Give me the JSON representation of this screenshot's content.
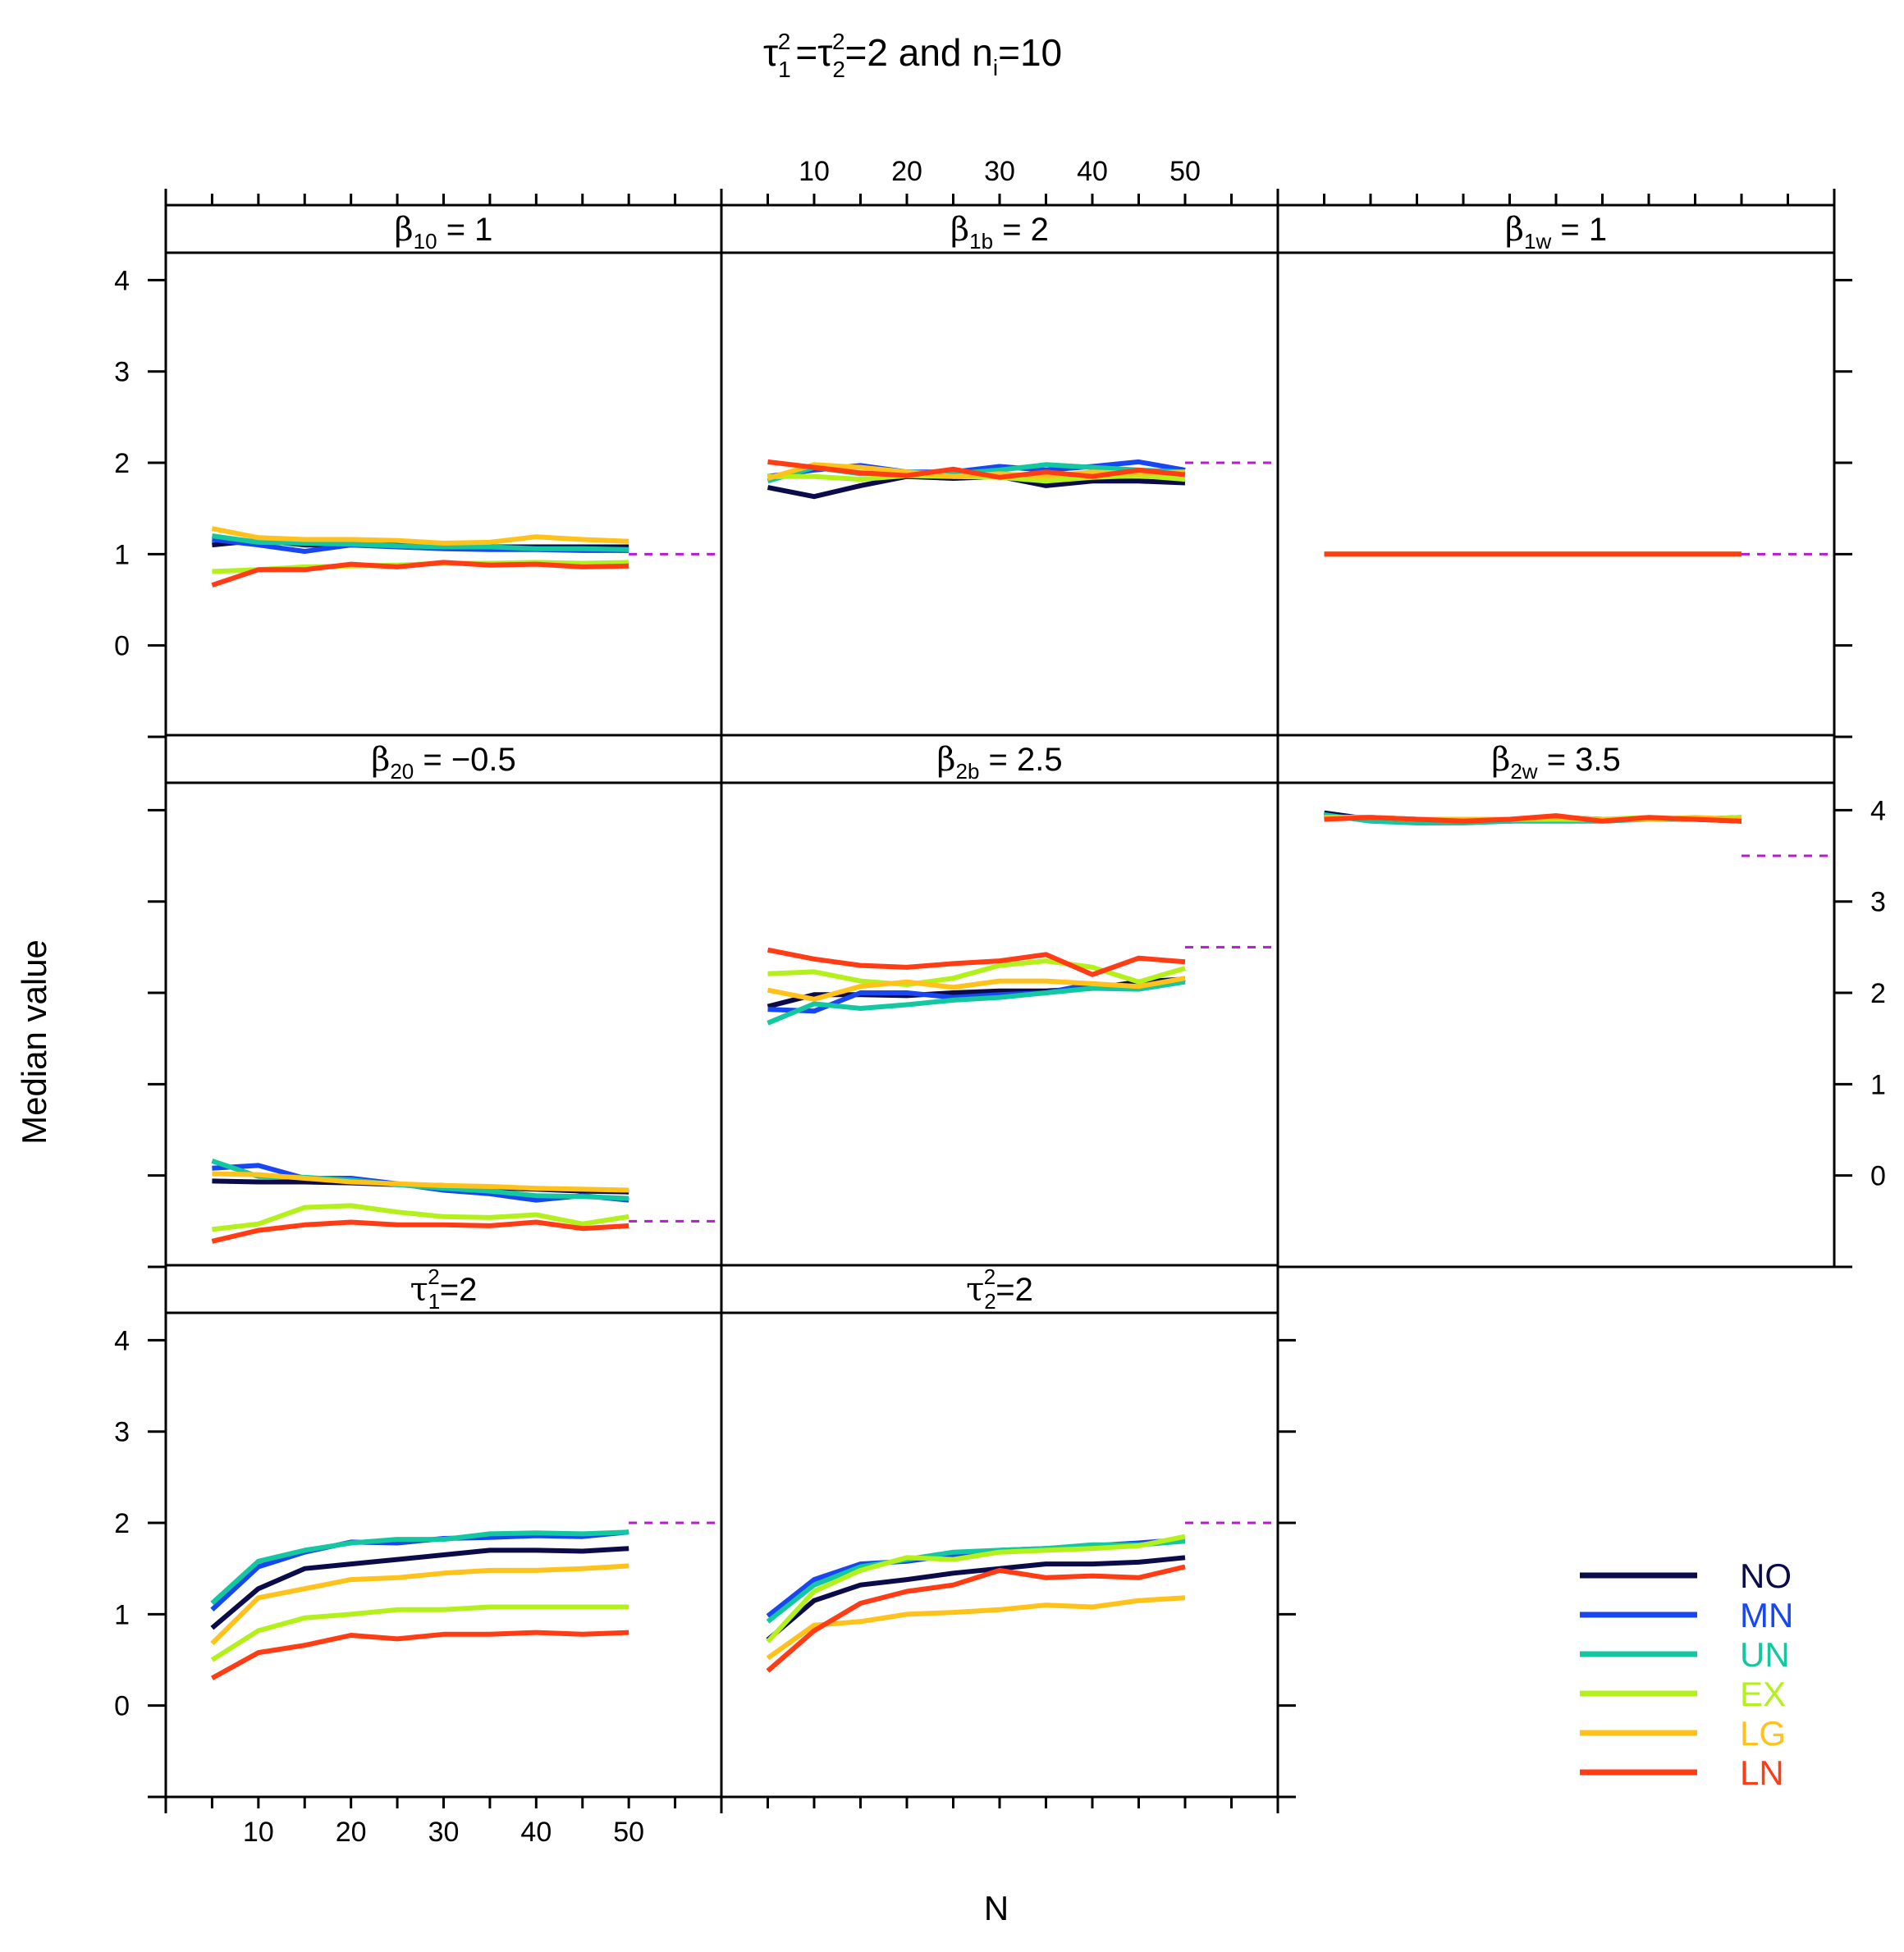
{
  "chart_data": {
    "type": "line",
    "title": {
      "main": "τ",
      "tau1_sub": "1",
      "tau1_sup": "2",
      "equals": "=",
      "tau2_sub": "2",
      "tau2_sup": "2",
      "rest": "=2 and n",
      "ni_sub": "i",
      "ni_rest": "=10"
    },
    "xlabel": "N",
    "ylabel": "Median value",
    "xlim": [
      0,
      60
    ],
    "ylim": [
      -1,
      4.3
    ],
    "x_ticks": [
      10,
      20,
      30,
      40,
      50
    ],
    "y_ticks": [
      0,
      1,
      2,
      3,
      4
    ],
    "x": [
      5,
      10,
      15,
      20,
      25,
      30,
      35,
      40,
      45,
      50
    ],
    "colors": {
      "NO": "#0B0B4A",
      "MN": "#1846F0",
      "UN": "#13C7A0",
      "EX": "#B4F01C",
      "LG": "#FFC21A",
      "LN": "#FF3C14",
      "ref": "#B41CCC"
    },
    "legend": [
      {
        "label": "NO",
        "color": "#0B0B4A"
      },
      {
        "label": "MN",
        "color": "#1846F0"
      },
      {
        "label": "UN",
        "color": "#13C7A0"
      },
      {
        "label": "EX",
        "color": "#B4F01C"
      },
      {
        "label": "LG",
        "color": "#FFC21A"
      },
      {
        "label": "LN",
        "color": "#FF3C14"
      }
    ],
    "panels": [
      {
        "id": "b10",
        "row": 0,
        "col": 0,
        "label": {
          "sym": "β",
          "sub": "10",
          "rest": " = 1"
        },
        "true_value": 1,
        "series": [
          {
            "name": "NO",
            "values": [
              1.1,
              1.15,
              1.1,
              1.1,
              1.1,
              1.08,
              1.08,
              1.08,
              1.08,
              1.08
            ]
          },
          {
            "name": "MN",
            "values": [
              1.16,
              1.1,
              1.03,
              1.1,
              1.08,
              1.06,
              1.05,
              1.05,
              1.04,
              1.04
            ]
          },
          {
            "name": "UN",
            "values": [
              1.2,
              1.13,
              1.12,
              1.11,
              1.09,
              1.08,
              1.08,
              1.06,
              1.06,
              1.05
            ]
          },
          {
            "name": "EX",
            "values": [
              0.81,
              0.83,
              0.86,
              0.87,
              0.88,
              0.9,
              0.9,
              0.91,
              0.9,
              0.91
            ]
          },
          {
            "name": "LG",
            "values": [
              1.28,
              1.18,
              1.16,
              1.16,
              1.15,
              1.12,
              1.13,
              1.19,
              1.16,
              1.14
            ]
          },
          {
            "name": "LN",
            "values": [
              0.66,
              0.83,
              0.83,
              0.89,
              0.86,
              0.91,
              0.88,
              0.89,
              0.86,
              0.87
            ]
          }
        ]
      },
      {
        "id": "b1b",
        "row": 0,
        "col": 1,
        "label": {
          "sym": "β",
          "sub": "1b",
          "rest": " = 2"
        },
        "true_value": 2,
        "series": [
          {
            "name": "NO",
            "values": [
              1.73,
              1.63,
              1.75,
              1.85,
              1.83,
              1.85,
              1.75,
              1.8,
              1.8,
              1.78
            ]
          },
          {
            "name": "MN",
            "values": [
              1.85,
              1.92,
              1.97,
              1.9,
              1.9,
              1.96,
              1.92,
              1.96,
              2.01,
              1.92
            ]
          },
          {
            "name": "UN",
            "values": [
              1.8,
              1.95,
              1.88,
              1.9,
              1.88,
              1.92,
              1.98,
              1.95,
              1.92,
              1.9
            ]
          },
          {
            "name": "EX",
            "values": [
              1.85,
              1.85,
              1.82,
              1.86,
              1.85,
              1.84,
              1.8,
              1.84,
              1.86,
              1.82
            ]
          },
          {
            "name": "LG",
            "values": [
              1.83,
              1.98,
              1.95,
              1.9,
              1.85,
              1.88,
              1.85,
              1.9,
              1.88,
              1.9
            ]
          },
          {
            "name": "LN",
            "values": [
              2.01,
              1.95,
              1.89,
              1.86,
              1.93,
              1.84,
              1.9,
              1.85,
              1.92,
              1.87
            ]
          }
        ]
      },
      {
        "id": "b1w",
        "row": 0,
        "col": 2,
        "label": {
          "sym": "β",
          "sub": "1w",
          "rest": " = 1"
        },
        "true_value": 1,
        "series": [
          {
            "name": "NO",
            "values": [
              1.0,
              1.0,
              1.0,
              1.0,
              1.0,
              1.0,
              1.0,
              1.0,
              1.0,
              1.0
            ]
          },
          {
            "name": "MN",
            "values": [
              1.0,
              1.0,
              1.0,
              1.0,
              1.0,
              1.0,
              1.0,
              1.0,
              1.0,
              1.0
            ]
          },
          {
            "name": "UN",
            "values": [
              1.0,
              1.0,
              1.0,
              1.0,
              1.0,
              1.0,
              1.0,
              1.0,
              1.0,
              1.0
            ]
          },
          {
            "name": "EX",
            "values": [
              1.0,
              1.0,
              1.0,
              1.0,
              1.0,
              1.0,
              1.0,
              1.0,
              1.0,
              1.0
            ]
          },
          {
            "name": "LG",
            "values": [
              1.0,
              1.0,
              1.0,
              1.0,
              1.0,
              1.0,
              1.0,
              1.0,
              1.0,
              1.0
            ]
          },
          {
            "name": "LN",
            "values": [
              1.0,
              1.0,
              1.0,
              1.0,
              1.0,
              1.0,
              1.0,
              1.0,
              1.0,
              1.0
            ]
          }
        ]
      },
      {
        "id": "b20",
        "row": 1,
        "col": 0,
        "label": {
          "sym": "β",
          "sub": "20",
          "rest": " = −0.5"
        },
        "true_value": -0.5,
        "series": [
          {
            "name": "NO",
            "values": [
              -0.06,
              -0.07,
              -0.07,
              -0.08,
              -0.1,
              -0.11,
              -0.13,
              -0.15,
              -0.17,
              -0.18
            ]
          },
          {
            "name": "MN",
            "values": [
              0.08,
              0.11,
              -0.03,
              -0.03,
              -0.09,
              -0.16,
              -0.2,
              -0.27,
              -0.22,
              -0.27
            ]
          },
          {
            "name": "UN",
            "values": [
              0.16,
              -0.01,
              -0.02,
              -0.05,
              -0.1,
              -0.14,
              -0.17,
              -0.22,
              -0.23,
              -0.25
            ]
          },
          {
            "name": "EX",
            "values": [
              -0.59,
              -0.53,
              -0.35,
              -0.33,
              -0.4,
              -0.45,
              -0.46,
              -0.43,
              -0.53,
              -0.45
            ]
          },
          {
            "name": "LG",
            "values": [
              0.02,
              0.01,
              -0.03,
              -0.07,
              -0.09,
              -0.11,
              -0.12,
              -0.14,
              -0.15,
              -0.16
            ]
          },
          {
            "name": "LN",
            "values": [
              -0.72,
              -0.6,
              -0.54,
              -0.51,
              -0.54,
              -0.54,
              -0.55,
              -0.51,
              -0.58,
              -0.55
            ]
          }
        ]
      },
      {
        "id": "b2b",
        "row": 1,
        "col": 1,
        "label": {
          "sym": "β",
          "sub": "2b",
          "rest": " = 2.5"
        },
        "true_value": 2.5,
        "series": [
          {
            "name": "NO",
            "values": [
              1.85,
              1.98,
              1.98,
              1.97,
              2.0,
              2.02,
              2.02,
              2.05,
              2.12,
              2.15
            ]
          },
          {
            "name": "MN",
            "values": [
              1.82,
              1.8,
              2.0,
              2.0,
              1.95,
              1.98,
              2.0,
              2.1,
              2.05,
              2.15
            ]
          },
          {
            "name": "UN",
            "values": [
              1.67,
              1.88,
              1.83,
              1.87,
              1.92,
              1.95,
              2.0,
              2.05,
              2.04,
              2.12
            ]
          },
          {
            "name": "EX",
            "values": [
              2.21,
              2.23,
              2.13,
              2.09,
              2.16,
              2.3,
              2.35,
              2.28,
              2.12,
              2.27
            ]
          },
          {
            "name": "LG",
            "values": [
              2.03,
              1.93,
              2.07,
              2.12,
              2.06,
              2.13,
              2.13,
              2.1,
              2.07,
              2.16
            ]
          },
          {
            "name": "LN",
            "values": [
              2.47,
              2.37,
              2.3,
              2.28,
              2.32,
              2.35,
              2.42,
              2.2,
              2.38,
              2.34
            ]
          }
        ]
      },
      {
        "id": "b2w",
        "row": 1,
        "col": 2,
        "label": {
          "sym": "β",
          "sub": "2w",
          "rest": " = 3.5"
        },
        "true_value": 3.5,
        "series": [
          {
            "name": "NO",
            "values": [
              3.97,
              3.9,
              3.88,
              3.9,
              3.88,
              3.92,
              3.9,
              3.9,
              3.9,
              3.88
            ]
          },
          {
            "name": "MN",
            "values": [
              3.93,
              3.92,
              3.9,
              3.9,
              3.9,
              3.9,
              3.9,
              3.9,
              3.9,
              3.92
            ]
          },
          {
            "name": "UN",
            "values": [
              3.95,
              3.88,
              3.86,
              3.86,
              3.88,
              3.88,
              3.88,
              3.9,
              3.9,
              3.92
            ]
          },
          {
            "name": "EX",
            "values": [
              3.92,
              3.92,
              3.9,
              3.9,
              3.9,
              3.9,
              3.9,
              3.92,
              3.9,
              3.92
            ]
          },
          {
            "name": "LG",
            "values": [
              3.92,
              3.92,
              3.9,
              3.9,
              3.9,
              3.92,
              3.9,
              3.9,
              3.92,
              3.9
            ]
          },
          {
            "name": "LN",
            "values": [
              3.9,
              3.92,
              3.9,
              3.88,
              3.9,
              3.94,
              3.88,
              3.92,
              3.9,
              3.88
            ]
          }
        ]
      },
      {
        "id": "t1",
        "row": 2,
        "col": 0,
        "label": {
          "sym": "τ",
          "sub": "1",
          "sup": "2",
          "rest": "=2"
        },
        "true_value": 2,
        "series": [
          {
            "name": "NO",
            "values": [
              0.85,
              1.28,
              1.5,
              1.55,
              1.6,
              1.65,
              1.7,
              1.7,
              1.69,
              1.72
            ]
          },
          {
            "name": "MN",
            "values": [
              1.05,
              1.52,
              1.68,
              1.79,
              1.78,
              1.83,
              1.84,
              1.86,
              1.85,
              1.9
            ]
          },
          {
            "name": "UN",
            "values": [
              1.12,
              1.58,
              1.7,
              1.78,
              1.82,
              1.82,
              1.88,
              1.89,
              1.88,
              1.9
            ]
          },
          {
            "name": "EX",
            "values": [
              0.5,
              0.82,
              0.96,
              1.0,
              1.05,
              1.05,
              1.08,
              1.08,
              1.08,
              1.08
            ]
          },
          {
            "name": "LG",
            "values": [
              0.68,
              1.18,
              1.28,
              1.38,
              1.4,
              1.45,
              1.48,
              1.48,
              1.5,
              1.53
            ]
          },
          {
            "name": "LN",
            "values": [
              0.3,
              0.58,
              0.66,
              0.77,
              0.73,
              0.78,
              0.78,
              0.8,
              0.78,
              0.8
            ]
          }
        ]
      },
      {
        "id": "t2",
        "row": 2,
        "col": 1,
        "label": {
          "sym": "τ",
          "sub": "2",
          "sup": "2",
          "rest": "=2"
        },
        "true_value": 2,
        "series": [
          {
            "name": "NO",
            "values": [
              0.72,
              1.15,
              1.32,
              1.38,
              1.45,
              1.5,
              1.55,
              1.55,
              1.57,
              1.62
            ]
          },
          {
            "name": "MN",
            "values": [
              0.98,
              1.38,
              1.55,
              1.58,
              1.65,
              1.7,
              1.72,
              1.75,
              1.78,
              1.82
            ]
          },
          {
            "name": "UN",
            "values": [
              0.92,
              1.32,
              1.52,
              1.6,
              1.68,
              1.7,
              1.72,
              1.76,
              1.76,
              1.8
            ]
          },
          {
            "name": "EX",
            "values": [
              0.7,
              1.25,
              1.48,
              1.62,
              1.6,
              1.68,
              1.7,
              1.72,
              1.75,
              1.85
            ]
          },
          {
            "name": "LG",
            "values": [
              0.52,
              0.88,
              0.92,
              1.0,
              1.02,
              1.05,
              1.1,
              1.08,
              1.15,
              1.18
            ]
          },
          {
            "name": "LN",
            "values": [
              0.38,
              0.82,
              1.12,
              1.25,
              1.32,
              1.48,
              1.4,
              1.42,
              1.4,
              1.52
            ]
          }
        ]
      }
    ]
  }
}
